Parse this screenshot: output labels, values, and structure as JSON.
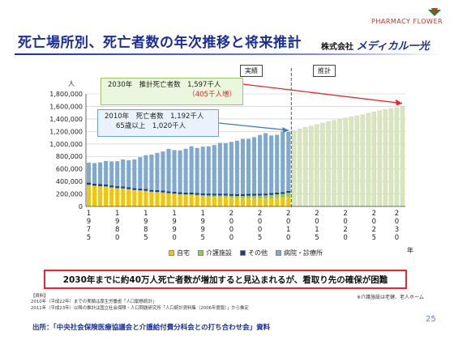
{
  "header": {
    "title": "死亡場所別、死亡者数の年次推移と将来推計",
    "company_prefix": "株式会社",
    "company_name": "メディカル一光",
    "logo_text": "PHARMACY FLOWER"
  },
  "callouts": {
    "c1_line1": "2030年　推計死亡者数　1,597千人",
    "c1_line2": "（405千人増）",
    "c2_line1": "2010年　死亡者数　1,192千人",
    "c2_line2": "65歳以上　1,020千人"
  },
  "tags": {
    "actual": "実績",
    "projection": "推計"
  },
  "conclusion": "2030年までに約40万人死亡者数が増加すると見込まれるが、看取り先の確保が困難",
  "footnote": "※介護施設は老健、老人ホーム",
  "notes": {
    "n1": "【資料】",
    "n2": "2010年（平成22年）までの実績は厚生労働省「人口動態統計」",
    "n3": "2011年（平成23年）以降の推計は国立社会保障・人口問題研究所「人口統計資料集（2006年度版）」から推定"
  },
  "source": "出所：「中央社会保険医療協議会と介護給付費分科会との打ち合わせ会」資料",
  "page_number": "25",
  "colors": {
    "home": "#f5c600",
    "care": "#97c94c",
    "other": "#1d3b8a",
    "hospital": "#7fa9d1",
    "projection": "#d9e6bd",
    "accent": "#e8262b",
    "brand": "#1a2f9c"
  },
  "chart_data": {
    "type": "bar",
    "stacked": true,
    "ylabel": "人",
    "xlabel": "年",
    "ylim": [
      0,
      1800000
    ],
    "yticks": [
      0,
      200000,
      400000,
      600000,
      800000,
      1000000,
      1200000,
      1400000,
      1600000,
      1800000
    ],
    "ytick_labels": [
      "0",
      "200,000",
      "400,000",
      "600,000",
      "800,000",
      "1,000,000",
      "1,200,000",
      "1,400,000",
      "1,600,000",
      "1,800,000"
    ],
    "xtick_labels": [
      "1975",
      "1980",
      "1985",
      "1990",
      "1995",
      "2000",
      "2005",
      "2010",
      "2015",
      "2020",
      "2025",
      "2030"
    ],
    "actual_range": [
      1975,
      2010
    ],
    "projection_range": [
      2011,
      2030
    ],
    "legend": [
      "自宅",
      "介護施設",
      "その他",
      "病院・診療所"
    ],
    "legend_placement": "bottom",
    "totals_actual": [
      702000,
      693000,
      705000,
      727000,
      721000,
      723000,
      751000,
      740000,
      752000,
      789000,
      820000,
      829000,
      856000,
      879000,
      922000,
      901000,
      896000,
      922000,
      962000,
      936000,
      956000,
      961000,
      982000,
      1017000,
      1015000,
      1032000,
      1051000,
      1082000,
      1084000,
      1108000,
      1142000,
      1172000,
      1135000,
      1147000,
      1197000,
      1192000
    ],
    "home_actual": [
      337000,
      324000,
      316000,
      312000,
      297000,
      285000,
      280000,
      268000,
      255000,
      249000,
      240000,
      225000,
      220000,
      212000,
      201000,
      193000,
      183000,
      178000,
      176000,
      168000,
      160000,
      155000,
      152000,
      150000,
      148000,
      140000,
      135000,
      131000,
      132000,
      132000,
      128000,
      126000,
      130000,
      134000,
      137000,
      150000
    ],
    "care_actual": [
      10000,
      9000,
      9000,
      9000,
      9000,
      9000,
      10000,
      10000,
      10000,
      10000,
      11000,
      11000,
      12000,
      13000,
      13000,
      14000,
      15000,
      16000,
      17000,
      19000,
      20000,
      22000,
      24000,
      26000,
      28000,
      30000,
      33000,
      37000,
      40000,
      43000,
      47000,
      51000,
      55000,
      60000,
      64000,
      69000
    ],
    "other_actual": [
      34000,
      32000,
      31000,
      30000,
      29000,
      29000,
      29000,
      28000,
      28000,
      28000,
      28000,
      28000,
      28000,
      28000,
      28000,
      28000,
      28000,
      28000,
      28000,
      28000,
      28000,
      28000,
      28000,
      28000,
      28000,
      28000,
      28000,
      28000,
      28000,
      28000,
      28000,
      28000,
      28000,
      28000,
      28000,
      28000
    ],
    "totals_projection": [
      1216000,
      1240000,
      1264000,
      1288000,
      1311000,
      1334000,
      1356000,
      1377000,
      1397000,
      1416000,
      1434000,
      1451000,
      1467000,
      1491000,
      1513000,
      1531000,
      1549000,
      1565000,
      1579000,
      1597000
    ],
    "annotations": [
      "2030年　推計死亡者数　1,597千人（405千人増）",
      "2010年　死亡者数　1,192千人　65歳以上　1,020千人"
    ]
  }
}
